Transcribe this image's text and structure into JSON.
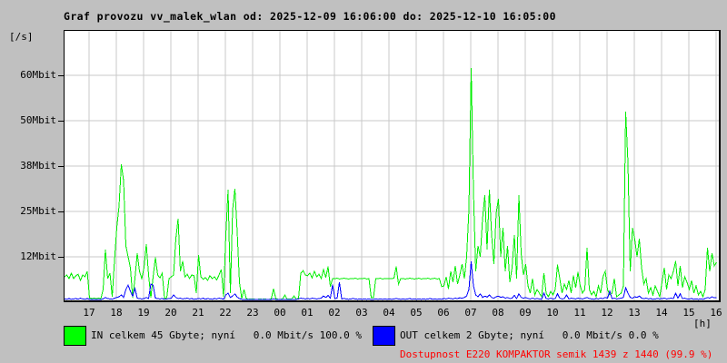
{
  "window": {
    "title": "Graf provozu vv_malek_wlan od: 2025-12-09 16:06:00 do: 2025-12-10 16:05:00"
  },
  "axis": {
    "unit_label": "[/s]",
    "hours_label": "[h]",
    "y_tick_labels": [
      "60Mbit",
      "50Mbit",
      "38Mbit",
      "25Mbit",
      "12Mbit"
    ],
    "x_tick_labels": [
      "17",
      "18",
      "19",
      "20",
      "21",
      "22",
      "23",
      "00",
      "01",
      "02",
      "03",
      "04",
      "05",
      "06",
      "07",
      "08",
      "09",
      "10",
      "11",
      "12",
      "13",
      "14",
      "15",
      "16"
    ]
  },
  "legend": {
    "in_label": "IN celkem 45 Gbyte; nyní   0.0 Mbit/s 100.0 %",
    "out_label": "OUT celkem 2 Gbyte; nyní   0.0 Mbit/s 0.0 %",
    "availability": "Dostupnost E220 KOMPAKTOR semik 1439 z 1440 (99.9 %)"
  },
  "colors": {
    "page_background": "#c0c0c0",
    "plot_background": "#ffffff",
    "grid": "#c9c9c9",
    "border": "#000000",
    "in_series": "#00ee00",
    "out_series": "#0000ff",
    "availability_text": "#ff0000"
  },
  "chart_data": {
    "type": "line",
    "title": "Graf provozu vv_malek_wlan od: 2025-12-09 16:06:00 do: 2025-12-10 16:05:00",
    "xlabel": "[h]",
    "ylabel": "[/s]",
    "x_start": "2025-12-09 16:06:00",
    "x_end": "2025-12-10 16:05:00",
    "sample_interval_minutes": 5,
    "x_tick_hours": [
      "17",
      "18",
      "19",
      "20",
      "21",
      "22",
      "23",
      "00",
      "01",
      "02",
      "03",
      "04",
      "05",
      "06",
      "07",
      "08",
      "09",
      "10",
      "11",
      "12",
      "13",
      "14",
      "15",
      "16"
    ],
    "y_gridline_labels_mbit": [
      60,
      50,
      38,
      25,
      12
    ],
    "ylim": [
      0,
      74.25
    ],
    "grid": true,
    "legend_position": "bottom",
    "series": [
      {
        "name": "IN",
        "color": "#00ee00",
        "unit": "Mbit/s",
        "values": [
          6.5,
          7,
          6,
          7.5,
          6,
          6.8,
          7.2,
          5.5,
          7,
          6.5,
          8,
          0.7,
          0.5,
          0.6,
          0.5,
          0.6,
          0.5,
          3,
          14,
          6,
          7.5,
          1,
          11,
          20,
          26,
          37.5,
          33,
          15,
          12,
          9,
          0.7,
          6,
          13,
          8,
          6,
          9,
          15.5,
          7,
          0.7,
          6.5,
          11.8,
          7,
          6.2,
          7.5,
          0.6,
          0.7,
          6,
          6.5,
          7,
          17,
          22.5,
          8,
          10.8,
          6.5,
          7.2,
          6,
          7,
          6.8,
          2,
          12.5,
          6.5,
          5.8,
          6.3,
          5.5,
          6.8,
          6,
          6.5,
          5.6,
          7,
          8.5,
          1,
          18,
          30.5,
          2,
          25,
          30.8,
          19,
          5,
          0.5,
          3,
          0.5,
          0.3,
          0.4,
          0.4,
          0.3,
          0.3,
          0.4,
          0.3,
          0.4,
          0.3,
          0.3,
          0.4,
          3.2,
          0.5,
          0.3,
          0.3,
          0.4,
          1.5,
          0.3,
          0.4,
          0.4,
          1.2,
          0.4,
          0.5,
          7.5,
          8.2,
          7,
          6.8,
          7.5,
          6.2,
          8,
          6.5,
          7.2,
          6,
          8.5,
          6.3,
          9.3,
          3.8,
          6,
          6,
          6.1,
          5.9,
          6,
          6.1,
          6,
          5.9,
          6,
          6,
          6.1,
          5.9,
          6,
          6,
          6.1,
          5.9,
          6,
          0.8,
          0.8,
          6,
          6,
          6.1,
          5.9,
          6,
          6,
          6,
          6,
          6.1,
          9.3,
          4.5,
          6,
          6,
          5.9,
          6,
          6.1,
          6,
          5.9,
          6,
          6.1,
          5.9,
          6,
          6,
          6.1,
          5.9,
          6,
          6.1,
          5.9,
          6,
          3.8,
          4,
          6.5,
          3.2,
          8,
          5,
          9.5,
          4.5,
          7,
          10,
          6,
          12,
          25,
          64,
          30,
          8,
          15,
          12,
          22.5,
          29,
          14,
          30.5,
          18,
          10,
          24,
          28,
          12,
          20,
          8,
          15,
          5,
          9,
          18,
          6,
          29,
          13,
          7,
          10,
          4,
          2,
          6,
          1.5,
          3,
          2,
          1,
          7.5,
          2,
          1,
          2.5,
          1.5,
          3,
          9.8,
          6,
          2,
          4.5,
          3,
          5.5,
          2,
          6.8,
          3.5,
          7.8,
          4,
          2,
          3,
          14.5,
          3,
          1.5,
          2.5,
          1,
          4,
          2,
          6.5,
          8,
          3,
          1.5,
          2,
          6,
          1,
          1.5,
          2,
          4,
          52,
          38,
          8,
          20,
          16.8,
          12,
          17,
          9,
          4.5,
          6,
          2,
          3.5,
          1.5,
          4,
          2.5,
          1,
          5,
          9,
          3,
          7,
          6,
          8,
          10.8,
          4,
          9.5,
          3.5,
          6.5,
          5,
          3,
          5.5,
          2,
          4,
          1.5,
          2.5,
          1,
          3,
          14.5,
          8,
          13,
          9.5,
          10.5
        ]
      },
      {
        "name": "OUT",
        "color": "#0000ff",
        "unit": "Mbit/s",
        "values": [
          0.4,
          0.3,
          0.5,
          0.3,
          0.4,
          0.5,
          0.3,
          0.6,
          0.4,
          0.3,
          0.5,
          0.3,
          0.2,
          0.3,
          0.2,
          0.3,
          0.2,
          0.4,
          0.8,
          0.5,
          0.4,
          0.3,
          0.6,
          0.8,
          1,
          1.5,
          0.8,
          3,
          4.2,
          2.5,
          1.2,
          3.3,
          0.6,
          0.5,
          0.4,
          0.5,
          0.8,
          0.5,
          4.5,
          4.2,
          0.6,
          0.5,
          0.4,
          0.5,
          0.3,
          0.4,
          0.5,
          0.6,
          1.5,
          0.8,
          0.5,
          0.6,
          0.4,
          0.5,
          0.6,
          0.4,
          0.5,
          0.3,
          0.4,
          0.5,
          0.4,
          0.6,
          0.3,
          0.5,
          0.4,
          0.3,
          0.5,
          0.4,
          0.6,
          0.5,
          0.3,
          1.5,
          2,
          0.8,
          1.2,
          1.8,
          0.9,
          0.5,
          0.3,
          0.2,
          0.3,
          0.2,
          0.3,
          0.2,
          0.3,
          0.2,
          0.2,
          0.3,
          0.2,
          0.2,
          0.3,
          0.2,
          0.4,
          0.3,
          0.2,
          0.3,
          0.2,
          0.3,
          0.2,
          0.2,
          0.3,
          0.2,
          0.3,
          0.4,
          0.6,
          0.5,
          0.4,
          0.5,
          0.4,
          0.6,
          0.5,
          0.4,
          0.5,
          0.6,
          1.2,
          0.8,
          1.4,
          0.6,
          4.3,
          0.5,
          0.6,
          5,
          0.4,
          0.5,
          0.4,
          0.3,
          0.4,
          0.5,
          0.4,
          0.3,
          0.4,
          0.3,
          0.4,
          0.3,
          0.4,
          0.2,
          0.3,
          0.4,
          0.3,
          0.4,
          0.3,
          0.4,
          0.3,
          0.4,
          0.3,
          0.4,
          0.5,
          0.4,
          0.3,
          0.4,
          0.3,
          0.4,
          0.5,
          0.3,
          0.4,
          0.3,
          0.4,
          0.3,
          0.4,
          0.3,
          0.4,
          0.5,
          0.3,
          0.4,
          0.3,
          0.4,
          0.3,
          0.5,
          0.4,
          0.6,
          0.5,
          0.4,
          0.6,
          0.5,
          0.7,
          0.6,
          0.8,
          1.2,
          3,
          10.7,
          4,
          1.5,
          1,
          1.8,
          0.8,
          1.2,
          0.9,
          1.5,
          0.8,
          0.6,
          1,
          1.2,
          0.8,
          1,
          0.6,
          0.8,
          0.5,
          0.6,
          1.4,
          0.5,
          1.8,
          0.8,
          0.6,
          0.8,
          0.5,
          0.4,
          0.6,
          0.4,
          0.5,
          0.4,
          0.3,
          2,
          0.5,
          0.4,
          0.6,
          0.4,
          0.5,
          1.8,
          0.6,
          0.4,
          0.5,
          1.5,
          0.4,
          0.6,
          0.5,
          0.4,
          0.6,
          0.5,
          0.4,
          0.6,
          0.8,
          0.5,
          0.4,
          0.3,
          0.5,
          0.4,
          0.6,
          0.5,
          0.8,
          0.6,
          2.5,
          0.5,
          0.6,
          0.4,
          0.5,
          0.6,
          0.8,
          3.5,
          2,
          0.8,
          0.6,
          1,
          0.8,
          1.2,
          0.6,
          0.5,
          0.6,
          0.4,
          0.5,
          0.3,
          0.4,
          0.5,
          0.4,
          0.5,
          0.6,
          0.4,
          0.5,
          0.6,
          0.5,
          2,
          0.6,
          1.8,
          0.5,
          0.6,
          0.4,
          0.4,
          0.5,
          0.3,
          0.4,
          0.3,
          0.4,
          0.3,
          0.5,
          0.8,
          0.6,
          1,
          0.7,
          0.8
        ]
      }
    ]
  }
}
